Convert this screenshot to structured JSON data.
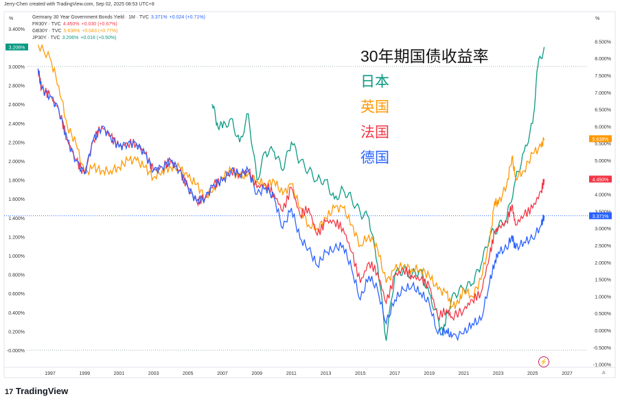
{
  "credit": "Jerry-Chen created with TradingView.com, Sep 02, 2025 08:53 UTC+8",
  "legend": [
    {
      "name": "Germany 30 Year Government Bonds Yield · 1M · TVC",
      "value": "3.371%",
      "change": "+0.024 (+0.71%)",
      "color": "#2962ff"
    },
    {
      "name": "FR30Y · TVC",
      "value": "4.450%",
      "change": "+0.030 (+0.67%)",
      "color": "#f23645"
    },
    {
      "name": "GB30Y · TVC",
      "value": "5.638%",
      "change": "+0.043 (+0.77%)",
      "color": "#ff9800"
    },
    {
      "name": "JP30Y · TVC",
      "value": "3.206%",
      "change": "+0.016 (+0.50%)",
      "color": "#089981"
    }
  ],
  "annotations": {
    "title": "30年期国债收益率",
    "labels": [
      {
        "text": "日本",
        "color": "#089981"
      },
      {
        "text": "英国",
        "color": "#ff9800"
      },
      {
        "text": "法国",
        "color": "#f23645"
      },
      {
        "text": "德国",
        "color": "#2962ff"
      }
    ]
  },
  "unit_left": "%",
  "unit_right": "%",
  "auto_label": "A",
  "logo": "TradingView",
  "chart_data": {
    "type": "line",
    "x_ticks": [
      "1997",
      "1999",
      "2001",
      "2003",
      "2005",
      "2007",
      "2009",
      "2011",
      "2013",
      "2015",
      "2017",
      "2019",
      "2021",
      "2023",
      "2025",
      "2027"
    ],
    "left_axis": {
      "ticks": [
        "3.400%",
        "3.000%",
        "2.800%",
        "2.600%",
        "2.400%",
        "2.200%",
        "2.000%",
        "1.800%",
        "1.600%",
        "1.400%",
        "1.200%",
        "1.000%",
        "0.800%",
        "0.600%",
        "0.400%",
        "0.200%",
        "-0.000%"
      ],
      "ylim": [
        0,
        3.4
      ]
    },
    "right_axis": {
      "ticks": [
        "8.500%",
        "8.000%",
        "7.500%",
        "7.000%",
        "6.500%",
        "6.000%",
        "5.500%",
        "5.000%",
        "4.000%",
        "3.500%",
        "3.000%",
        "2.500%",
        "2.000%",
        "1.500%",
        "1.000%",
        "0.500%",
        "0.000%",
        "-0.500%",
        "-1.000%"
      ],
      "ylim": [
        -1,
        9
      ]
    },
    "series": [
      {
        "name": "JP30Y",
        "axis": "left",
        "color": "#089981",
        "last": "3.206%",
        "points": [
          [
            2006.4,
            2.6
          ],
          [
            2006.7,
            2.4
          ],
          [
            2007,
            2.35
          ],
          [
            2007.5,
            2.45
          ],
          [
            2008,
            2.2
          ],
          [
            2008.5,
            2.5
          ],
          [
            2009,
            1.8
          ],
          [
            2009.5,
            2.1
          ],
          [
            2010,
            2.1
          ],
          [
            2010.5,
            1.9
          ],
          [
            2011,
            2.2
          ],
          [
            2011.5,
            2.0
          ],
          [
            2012,
            1.9
          ],
          [
            2012.5,
            1.8
          ],
          [
            2013,
            1.8
          ],
          [
            2013.5,
            1.6
          ],
          [
            2014,
            1.7
          ],
          [
            2014.5,
            1.6
          ],
          [
            2015,
            1.45
          ],
          [
            2015.5,
            1.4
          ],
          [
            2016,
            0.9
          ],
          [
            2016.5,
            0.1
          ],
          [
            2017,
            0.8
          ],
          [
            2017.5,
            0.85
          ],
          [
            2018,
            0.8
          ],
          [
            2018.5,
            0.85
          ],
          [
            2019,
            0.6
          ],
          [
            2019.5,
            0.35
          ],
          [
            2019.8,
            0.15
          ],
          [
            2020,
            0.4
          ],
          [
            2020.5,
            0.6
          ],
          [
            2021,
            0.65
          ],
          [
            2021.5,
            0.7
          ],
          [
            2022,
            0.9
          ],
          [
            2022.5,
            1.2
          ],
          [
            2023,
            1.3
          ],
          [
            2023.5,
            1.4
          ],
          [
            2024,
            1.8
          ],
          [
            2024.5,
            2.1
          ],
          [
            2025,
            2.4
          ],
          [
            2025.3,
            3.0
          ],
          [
            2025.67,
            3.206
          ]
        ]
      },
      {
        "name": "GB30Y",
        "axis": "right",
        "color": "#ff9800",
        "last": "5.638%",
        "points": [
          [
            1996.3,
            8.4
          ],
          [
            1997,
            8.0
          ],
          [
            1997.5,
            7.2
          ],
          [
            1998,
            6.0
          ],
          [
            1998.5,
            5.5
          ],
          [
            1999,
            4.6
          ],
          [
            1999.5,
            4.8
          ],
          [
            2000,
            4.7
          ],
          [
            2000.5,
            4.7
          ],
          [
            2001,
            4.8
          ],
          [
            2001.5,
            5.0
          ],
          [
            2002,
            5.0
          ],
          [
            2002.5,
            4.8
          ],
          [
            2003,
            4.5
          ],
          [
            2003.5,
            4.7
          ],
          [
            2004,
            4.8
          ],
          [
            2004.5,
            4.8
          ],
          [
            2005,
            4.5
          ],
          [
            2005.5,
            4.3
          ],
          [
            2006,
            3.9
          ],
          [
            2006.5,
            4.2
          ],
          [
            2007,
            4.5
          ],
          [
            2007.5,
            4.7
          ],
          [
            2008,
            4.5
          ],
          [
            2008.5,
            4.6
          ],
          [
            2009,
            4.4
          ],
          [
            2009.5,
            4.3
          ],
          [
            2010,
            4.4
          ],
          [
            2010.5,
            4.0
          ],
          [
            2011,
            4.3
          ],
          [
            2011.5,
            3.6
          ],
          [
            2012,
            3.1
          ],
          [
            2012.5,
            3.0
          ],
          [
            2013,
            3.3
          ],
          [
            2013.5,
            3.6
          ],
          [
            2014,
            3.6
          ],
          [
            2014.5,
            3.1
          ],
          [
            2015,
            2.5
          ],
          [
            2015.5,
            2.8
          ],
          [
            2016,
            2.4
          ],
          [
            2016.5,
            1.4
          ],
          [
            2017,
            1.8
          ],
          [
            2017.5,
            1.9
          ],
          [
            2018,
            1.8
          ],
          [
            2018.5,
            1.8
          ],
          [
            2019,
            1.6
          ],
          [
            2019.5,
            1.2
          ],
          [
            2020,
            1.1
          ],
          [
            2020.3,
            0.7
          ],
          [
            2020.7,
            0.8
          ],
          [
            2021,
            1.2
          ],
          [
            2021.5,
            1.0
          ],
          [
            2022,
            1.5
          ],
          [
            2022.5,
            2.6
          ],
          [
            2022.8,
            3.8
          ],
          [
            2023,
            3.7
          ],
          [
            2023.5,
            4.3
          ],
          [
            2023.8,
            5.1
          ],
          [
            2024,
            4.5
          ],
          [
            2024.5,
            4.7
          ],
          [
            2025,
            5.2
          ],
          [
            2025.5,
            5.4
          ],
          [
            2025.67,
            5.638
          ]
        ]
      },
      {
        "name": "FR30Y",
        "axis": "right",
        "color": "#f23645",
        "last": "4.450%",
        "points": [
          [
            1996.3,
            7.7
          ],
          [
            1996.5,
            7.1
          ],
          [
            1997,
            6.9
          ],
          [
            1997.5,
            6.5
          ],
          [
            1998,
            5.6
          ],
          [
            1998.5,
            5.0
          ],
          [
            1999,
            4.6
          ],
          [
            1999.5,
            5.6
          ],
          [
            2000,
            6.0
          ],
          [
            2000.5,
            5.7
          ],
          [
            2001,
            5.4
          ],
          [
            2001.5,
            5.5
          ],
          [
            2002,
            5.5
          ],
          [
            2002.5,
            5.2
          ],
          [
            2003,
            4.7
          ],
          [
            2003.5,
            4.8
          ],
          [
            2004,
            5.0
          ],
          [
            2004.5,
            4.7
          ],
          [
            2005,
            4.2
          ],
          [
            2005.5,
            3.8
          ],
          [
            2006,
            3.9
          ],
          [
            2006.5,
            4.3
          ],
          [
            2007,
            4.4
          ],
          [
            2007.5,
            4.7
          ],
          [
            2008,
            4.6
          ],
          [
            2008.5,
            4.7
          ],
          [
            2009,
            4.2
          ],
          [
            2009.5,
            4.3
          ],
          [
            2010,
            4.0
          ],
          [
            2010.5,
            3.5
          ],
          [
            2011,
            4.2
          ],
          [
            2011.5,
            3.4
          ],
          [
            2012,
            3.6
          ],
          [
            2012.5,
            2.8
          ],
          [
            2013,
            3.2
          ],
          [
            2013.5,
            3.2
          ],
          [
            2014,
            3.0
          ],
          [
            2014.5,
            2.3
          ],
          [
            2015,
            1.4
          ],
          [
            2015.5,
            2.0
          ],
          [
            2016,
            1.7
          ],
          [
            2016.5,
            0.8
          ],
          [
            2017,
            1.6
          ],
          [
            2017.5,
            1.8
          ],
          [
            2018,
            1.6
          ],
          [
            2018.5,
            1.5
          ],
          [
            2019,
            1.3
          ],
          [
            2019.5,
            0.4
          ],
          [
            2020,
            0.6
          ],
          [
            2020.3,
            0.4
          ],
          [
            2021,
            0.6
          ],
          [
            2021.5,
            0.9
          ],
          [
            2022,
            1.1
          ],
          [
            2022.5,
            2.2
          ],
          [
            2022.8,
            2.9
          ],
          [
            2023,
            3.0
          ],
          [
            2023.5,
            3.2
          ],
          [
            2023.8,
            3.7
          ],
          [
            2024,
            3.1
          ],
          [
            2024.5,
            3.4
          ],
          [
            2025,
            3.6
          ],
          [
            2025.5,
            4.1
          ],
          [
            2025.67,
            4.45
          ]
        ]
      },
      {
        "name": "DE30Y",
        "axis": "right",
        "color": "#2962ff",
        "last": "3.371%",
        "points": [
          [
            1996.3,
            7.7
          ],
          [
            1996.5,
            7.1
          ],
          [
            1997,
            6.9
          ],
          [
            1997.5,
            6.5
          ],
          [
            1998,
            5.6
          ],
          [
            1998.5,
            5.0
          ],
          [
            1999,
            4.6
          ],
          [
            1999.5,
            5.6
          ],
          [
            2000,
            6.0
          ],
          [
            2000.5,
            5.7
          ],
          [
            2001,
            5.4
          ],
          [
            2001.5,
            5.5
          ],
          [
            2002,
            5.5
          ],
          [
            2002.5,
            5.2
          ],
          [
            2003,
            4.7
          ],
          [
            2003.5,
            4.8
          ],
          [
            2004,
            5.0
          ],
          [
            2004.5,
            4.7
          ],
          [
            2005,
            4.2
          ],
          [
            2005.5,
            3.8
          ],
          [
            2006,
            3.9
          ],
          [
            2006.5,
            4.3
          ],
          [
            2007,
            4.4
          ],
          [
            2007.5,
            4.7
          ],
          [
            2008,
            4.6
          ],
          [
            2008.5,
            4.7
          ],
          [
            2009,
            4.0
          ],
          [
            2009.5,
            4.2
          ],
          [
            2010,
            3.9
          ],
          [
            2010.5,
            3.0
          ],
          [
            2011,
            3.6
          ],
          [
            2011.5,
            2.7
          ],
          [
            2012,
            2.4
          ],
          [
            2012.5,
            1.9
          ],
          [
            2013,
            2.3
          ],
          [
            2013.5,
            2.4
          ],
          [
            2014,
            2.5
          ],
          [
            2014.5,
            1.8
          ],
          [
            2015,
            0.9
          ],
          [
            2015.5,
            1.6
          ],
          [
            2016,
            1.2
          ],
          [
            2016.5,
            0.2
          ],
          [
            2017,
            0.9
          ],
          [
            2017.5,
            1.2
          ],
          [
            2018,
            1.3
          ],
          [
            2018.5,
            1.1
          ],
          [
            2019,
            0.8
          ],
          [
            2019.5,
            -0.1
          ],
          [
            2020,
            0.0
          ],
          [
            2020.3,
            -0.2
          ],
          [
            2021,
            -0.1
          ],
          [
            2021.5,
            0.2
          ],
          [
            2022,
            0.3
          ],
          [
            2022.5,
            1.4
          ],
          [
            2022.8,
            2.0
          ],
          [
            2023,
            2.3
          ],
          [
            2023.5,
            2.4
          ],
          [
            2023.8,
            2.8
          ],
          [
            2024,
            2.4
          ],
          [
            2024.5,
            2.6
          ],
          [
            2025,
            2.7
          ],
          [
            2025.5,
            3.1
          ],
          [
            2025.67,
            3.371
          ]
        ]
      }
    ]
  }
}
